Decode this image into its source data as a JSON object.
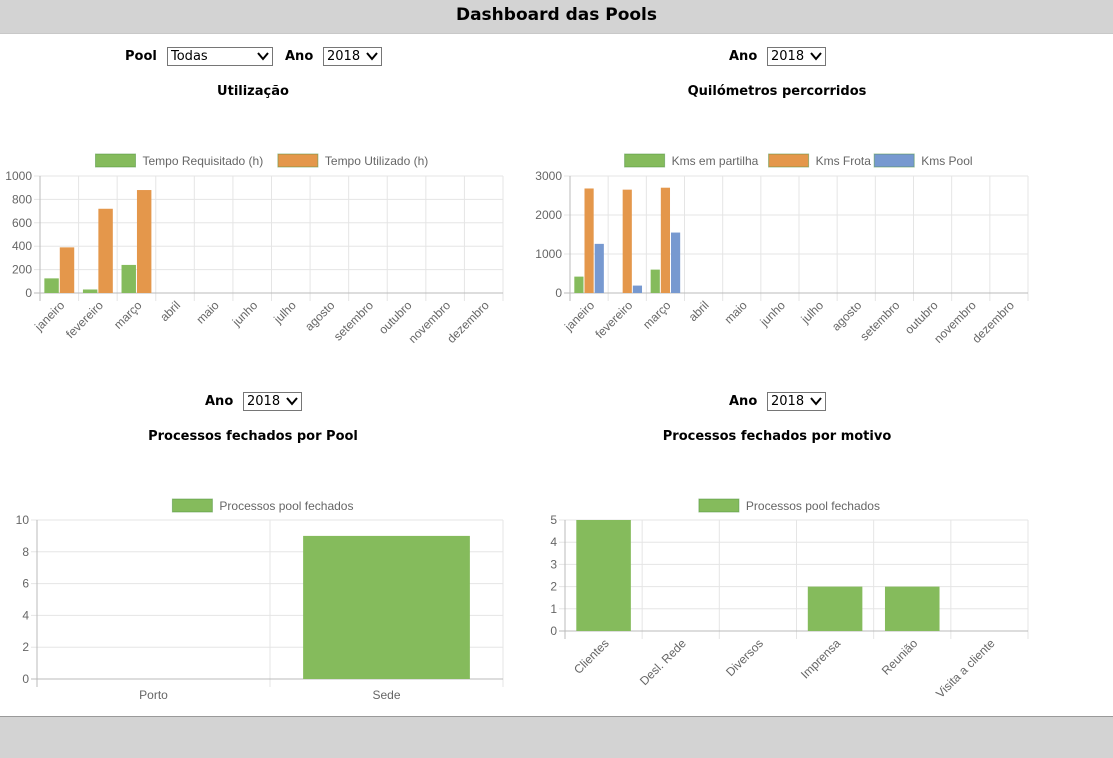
{
  "header": {
    "title": "Dashboard das Pools"
  },
  "panels": {
    "util": {
      "filters": {
        "pool_label": "Pool",
        "pool_value": "Todas",
        "ano_label": "Ano",
        "ano_value": "2018"
      },
      "title": "Utilização"
    },
    "km": {
      "filters": {
        "ano_label": "Ano",
        "ano_value": "2018"
      },
      "title": "Quilómetros percorridos"
    },
    "pool": {
      "filters": {
        "ano_label": "Ano",
        "ano_value": "2018"
      },
      "title": "Processos fechados por Pool"
    },
    "motivo": {
      "filters": {
        "ano_label": "Ano",
        "ano_value": "2018"
      },
      "title": "Processos fechados por motivo"
    }
  },
  "colors": {
    "green": "#85bb5c",
    "orange": "#e4974b",
    "blue": "#7799d0",
    "header_bg": "#d3d3d3"
  },
  "chart_data": [
    {
      "id": "util",
      "type": "bar",
      "categories": [
        "janeiro",
        "fevereiro",
        "março",
        "abril",
        "maio",
        "junho",
        "julho",
        "agosto",
        "setembro",
        "outubro",
        "novembro",
        "dezembro"
      ],
      "series": [
        {
          "name": "Tempo Requisitado (h)",
          "color": "#85bb5c",
          "values": [
            125,
            30,
            240,
            0,
            0,
            0,
            0,
            0,
            0,
            0,
            0,
            0
          ]
        },
        {
          "name": "Tempo Utilizado (h)",
          "color": "#e4974b",
          "values": [
            390,
            720,
            880,
            0,
            0,
            0,
            0,
            0,
            0,
            0,
            0,
            0
          ]
        }
      ],
      "ylim": [
        0,
        1000
      ],
      "yticks": [
        "0",
        "200",
        "400",
        "600",
        "800",
        "1000"
      ],
      "legend": "top",
      "grid": true
    },
    {
      "id": "km",
      "type": "bar",
      "categories": [
        "janeiro",
        "fevereiro",
        "março",
        "abril",
        "maio",
        "junho",
        "julho",
        "agosto",
        "setembro",
        "outubro",
        "novembro",
        "dezembro"
      ],
      "series": [
        {
          "name": "Kms em partilha",
          "color": "#85bb5c",
          "values": [
            420,
            0,
            600,
            0,
            0,
            0,
            0,
            0,
            0,
            0,
            0,
            0
          ]
        },
        {
          "name": "Kms Frota",
          "color": "#e4974b",
          "values": [
            2680,
            2650,
            2700,
            0,
            0,
            0,
            0,
            0,
            0,
            0,
            0,
            0
          ]
        },
        {
          "name": "Kms Pool",
          "color": "#7799d0",
          "values": [
            1260,
            190,
            1550,
            0,
            0,
            0,
            0,
            0,
            0,
            0,
            0,
            0
          ]
        }
      ],
      "ylim": [
        0,
        3000
      ],
      "yticks": [
        "0",
        "1000",
        "2000",
        "3000"
      ],
      "legend": "top",
      "grid": true
    },
    {
      "id": "pool",
      "type": "bar",
      "categories": [
        "Porto",
        "Sede"
      ],
      "series": [
        {
          "name": "Processos pool fechados",
          "color": "#85bb5c",
          "values": [
            0,
            9
          ]
        }
      ],
      "ylim": [
        0,
        10
      ],
      "yticks": [
        "0",
        "2",
        "4",
        "6",
        "8",
        "10"
      ],
      "legend": "top",
      "grid": true
    },
    {
      "id": "motivo",
      "type": "bar",
      "categories": [
        "Clientes",
        "Desl. Rede",
        "Diversos",
        "Imprensa",
        "Reunião",
        "Visita a cliente"
      ],
      "series": [
        {
          "name": "Processos pool fechados",
          "color": "#85bb5c",
          "values": [
            5,
            0,
            0,
            2,
            2,
            0
          ]
        }
      ],
      "ylim": [
        0,
        5
      ],
      "yticks": [
        "0",
        "1",
        "2",
        "3",
        "4",
        "5"
      ],
      "legend": "top",
      "grid": true
    }
  ]
}
